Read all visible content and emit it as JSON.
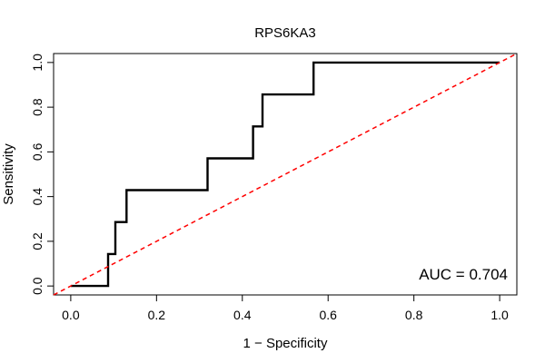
{
  "chart_data": {
    "type": "line",
    "title": "RPS6KA3",
    "xlabel": "1 − Specificity",
    "ylabel": "Sensitivity",
    "xlim": [
      -0.04,
      1.04
    ],
    "ylim": [
      -0.04,
      1.04
    ],
    "xticks": [
      0.0,
      0.2,
      0.4,
      0.6,
      0.8,
      1.0
    ],
    "yticks": [
      0.0,
      0.2,
      0.4,
      0.6,
      0.8,
      1.0
    ],
    "xtick_labels": [
      "0.0",
      "0.2",
      "0.4",
      "0.6",
      "0.8",
      "1.0"
    ],
    "ytick_labels": [
      "0.0",
      "0.2",
      "0.4",
      "0.6",
      "0.8",
      "1.0"
    ],
    "grid": false,
    "series": [
      {
        "style": "solid",
        "color": "#000000",
        "x": [
          0.0,
          0.087,
          0.087,
          0.104,
          0.104,
          0.13,
          0.13,
          0.319,
          0.319,
          0.425,
          0.425,
          0.447,
          0.447,
          0.566,
          0.566,
          1.0
        ],
        "y": [
          0.0,
          0.0,
          0.143,
          0.143,
          0.286,
          0.286,
          0.429,
          0.429,
          0.571,
          0.571,
          0.714,
          0.714,
          0.857,
          0.857,
          1.0,
          1.0
        ]
      },
      {
        "style": "dashed",
        "color": "#ff0000",
        "x": [
          -0.04,
          1.04
        ],
        "y": [
          -0.04,
          1.04
        ]
      }
    ],
    "annotation": "AUC = 0.704"
  }
}
